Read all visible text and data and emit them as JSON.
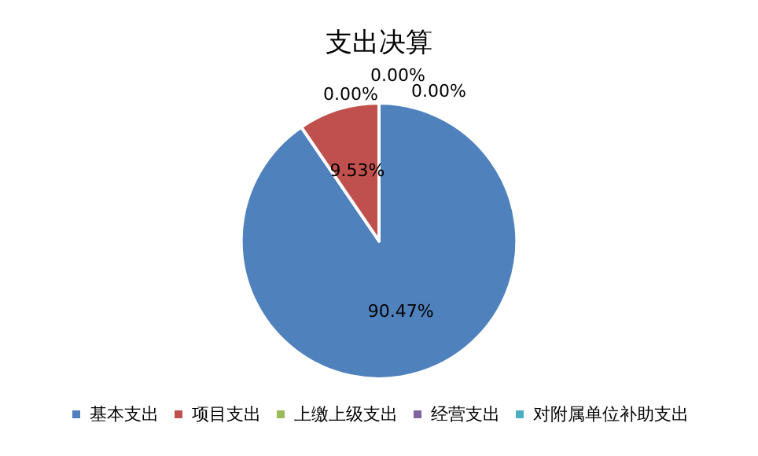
{
  "chart_data": {
    "type": "pie",
    "title": "支出决算",
    "categories": [
      "基本支出",
      "项目支出",
      "上缴上级支出",
      "经营支出",
      "对附属单位补助支出"
    ],
    "values": [
      90.47,
      9.53,
      0,
      0,
      0
    ],
    "colors": [
      "#4f81bd",
      "#c0504d",
      "#9bbb59",
      "#8064a2",
      "#4bacc6"
    ],
    "value_labels": [
      "90.47%",
      "9.53%",
      "0.00%",
      "0.00%",
      "0.00%"
    ],
    "legend": "bottom"
  }
}
